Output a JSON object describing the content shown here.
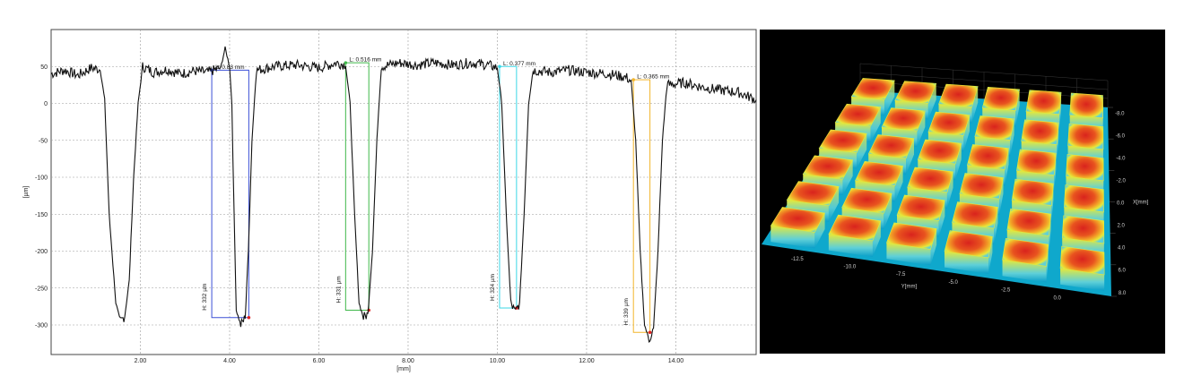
{
  "chart_data": [
    {
      "type": "line",
      "title": "",
      "xlabel": "[mm]",
      "ylabel": "[µm]",
      "xlim": [
        0.0,
        15.8
      ],
      "ylim": [
        -340,
        100
      ],
      "x_ticks": [
        "2.00",
        "4.00",
        "6.00",
        "8.00",
        "10.00",
        "12.00",
        "14.00"
      ],
      "y_ticks": [
        "50",
        "0",
        "-50",
        "-100",
        "-150",
        "-200",
        "-250",
        "-300"
      ],
      "grid": true,
      "series": [
        {
          "points": [
            [
              0.0,
              40
            ],
            [
              0.3,
              45
            ],
            [
              0.6,
              38
            ],
            [
              0.9,
              48
            ],
            [
              1.1,
              46
            ],
            [
              1.2,
              5
            ],
            [
              1.3,
              -150
            ],
            [
              1.45,
              -270
            ],
            [
              1.55,
              -295
            ],
            [
              1.65,
              -288
            ],
            [
              1.75,
              -240
            ],
            [
              1.85,
              -100
            ],
            [
              1.95,
              0
            ],
            [
              2.05,
              50
            ],
            [
              2.3,
              42
            ],
            [
              2.6,
              46
            ],
            [
              2.9,
              40
            ],
            [
              3.2,
              44
            ],
            [
              3.5,
              42
            ],
            [
              3.8,
              48
            ],
            [
              3.9,
              75
            ],
            [
              4.0,
              50
            ],
            [
              4.05,
              0
            ],
            [
              4.1,
              -150
            ],
            [
              4.15,
              -280
            ],
            [
              4.25,
              -300
            ],
            [
              4.35,
              -290
            ],
            [
              4.42,
              -200
            ],
            [
              4.5,
              -50
            ],
            [
              4.6,
              45
            ],
            [
              5.0,
              50
            ],
            [
              5.5,
              52
            ],
            [
              6.0,
              48
            ],
            [
              6.4,
              55
            ],
            [
              6.6,
              52
            ],
            [
              6.7,
              0
            ],
            [
              6.8,
              -150
            ],
            [
              6.9,
              -270
            ],
            [
              7.0,
              -290
            ],
            [
              7.1,
              -285
            ],
            [
              7.2,
              -200
            ],
            [
              7.3,
              -50
            ],
            [
              7.4,
              50
            ],
            [
              7.8,
              55
            ],
            [
              8.2,
              52
            ],
            [
              8.6,
              55
            ],
            [
              9.0,
              52
            ],
            [
              9.4,
              55
            ],
            [
              9.8,
              52
            ],
            [
              10.0,
              48
            ],
            [
              10.1,
              0
            ],
            [
              10.2,
              -150
            ],
            [
              10.3,
              -270
            ],
            [
              10.4,
              -283
            ],
            [
              10.5,
              -270
            ],
            [
              10.6,
              -150
            ],
            [
              10.7,
              0
            ],
            [
              10.8,
              45
            ],
            [
              11.2,
              42
            ],
            [
              11.6,
              45
            ],
            [
              12.0,
              42
            ],
            [
              12.5,
              40
            ],
            [
              12.9,
              35
            ],
            [
              13.0,
              30
            ],
            [
              13.1,
              -50
            ],
            [
              13.2,
              -200
            ],
            [
              13.3,
              -300
            ],
            [
              13.4,
              -320
            ],
            [
              13.5,
              -305
            ],
            [
              13.6,
              -200
            ],
            [
              13.7,
              -50
            ],
            [
              13.8,
              25
            ],
            [
              14.2,
              28
            ],
            [
              14.6,
              22
            ],
            [
              15.0,
              18
            ],
            [
              15.4,
              15
            ],
            [
              15.8,
              5
            ]
          ]
        }
      ],
      "annotations": [
        {
          "x0": 3.6,
          "x1": 4.43,
          "y_top": 45,
          "y_bottom": -290,
          "color": "#3a4fd6",
          "width_label": "L: 0.83 mm",
          "height_label": "H: 332 µm"
        },
        {
          "x0": 6.6,
          "x1": 7.12,
          "y_top": 55,
          "y_bottom": -280,
          "color": "#3fb84a",
          "width_label": "L: 0.516 mm",
          "height_label": "H: 331 µm"
        },
        {
          "x0": 10.05,
          "x1": 10.43,
          "y_top": 50,
          "y_bottom": -277,
          "color": "#3ad7e6",
          "width_label": "L: 0.377 mm",
          "height_label": "H: 324 µm"
        },
        {
          "x0": 13.05,
          "x1": 13.42,
          "y_top": 32,
          "y_bottom": -310,
          "color": "#f2b52b",
          "width_label": "L: 0.365 mm",
          "height_label": "H: 339 µm"
        }
      ]
    },
    {
      "type": "surface",
      "xlabel": "X[mm]",
      "ylabel": "Y[mm]",
      "x_ticks": [
        "-8.0",
        "-6.0",
        "-4.0",
        "-2.0",
        "0.0",
        "2.0",
        "4.0",
        "6.0",
        "8.0"
      ],
      "y_ticks": [
        "-12.5",
        "-10.0",
        "-7.5",
        "-5.0",
        "-2.5",
        "0.0"
      ],
      "grid": true,
      "colormap": [
        "#0a9ec9",
        "#5fd0d8",
        "#e6e93a",
        "#f2a527",
        "#d9231d"
      ]
    }
  ]
}
